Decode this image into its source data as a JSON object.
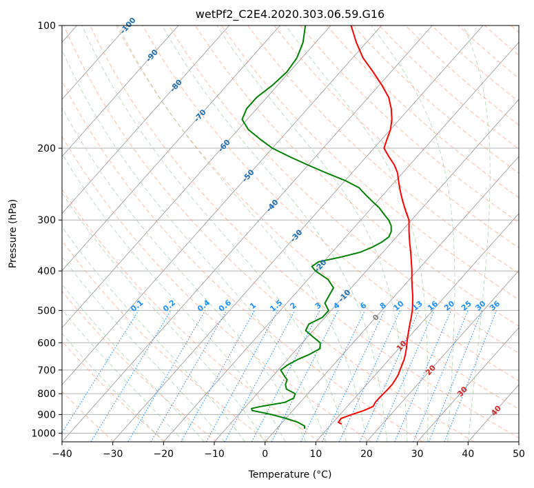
{
  "chart_data": {
    "type": "line",
    "subtype": "skew-t log-p diagram",
    "title": "wetPf2_C2E4.2020.303.06.59.G16",
    "xlabel": "Temperature (°C)",
    "ylabel": "Pressure (hPa)",
    "xlim": [
      -40,
      50
    ],
    "ylim": [
      1050,
      100
    ],
    "y_scale": "log",
    "grid": true,
    "x_ticks": [
      -40,
      -30,
      -20,
      -10,
      0,
      10,
      20,
      30,
      40,
      50
    ],
    "y_ticks": [
      100,
      200,
      300,
      400,
      500,
      600,
      700,
      800,
      900,
      1000
    ],
    "isotherm_labels": [
      "-100",
      "-90",
      "-80",
      "-70",
      "-60",
      "-50",
      "-40",
      "-30",
      "-20",
      "-10",
      "0",
      "10",
      "20",
      "30",
      "40"
    ],
    "mixing_ratio_labels": [
      "0.1",
      "0.2",
      "0.4",
      "0.6",
      "1",
      "1.5",
      "2",
      "3",
      "4",
      "6",
      "8",
      "10",
      "13",
      "16",
      "20",
      "25",
      "30",
      "36"
    ],
    "colors": {
      "temperature": "#ff0000",
      "dewpoint": "#008000",
      "isotherm_label_cold": "#1f6fb4",
      "isotherm_label_zero": "#808080",
      "isotherm_label_warm": "#d62728",
      "mixing_ratio": "#1e90ff",
      "dry_adiabat": "#ffa07a",
      "moist_adiabat": "#90c890",
      "skewed_isotherm": "#a0a0a0"
    },
    "series": [
      {
        "key": "temperature",
        "pressure": [
          950,
          940,
          920,
          900,
          880,
          860,
          840,
          820,
          800,
          780,
          760,
          740,
          720,
          700,
          680,
          660,
          640,
          620,
          600,
          580,
          560,
          540,
          520,
          500,
          480,
          460,
          440,
          420,
          400,
          380,
          360,
          340,
          320,
          300,
          290,
          280,
          270,
          260,
          250,
          240,
          230,
          220,
          210,
          200,
          190,
          180,
          170,
          160,
          150,
          140,
          130,
          120,
          110,
          100
        ],
        "values": [
          12.0,
          11.0,
          10.9,
          12.3,
          14.0,
          15.1,
          14.8,
          14.8,
          14.9,
          15.0,
          15.0,
          14.8,
          14.5,
          14.0,
          13.5,
          13.0,
          12.3,
          11.5,
          10.6,
          9.7,
          8.8,
          7.9,
          7.0,
          6.0,
          4.8,
          3.5,
          2.0,
          0.5,
          -1.0,
          -2.7,
          -4.5,
          -6.5,
          -8.5,
          -10.5,
          -12.0,
          -13.5,
          -15.0,
          -16.5,
          -18.0,
          -19.5,
          -21.0,
          -23.0,
          -25.5,
          -28.0,
          -29.0,
          -30.0,
          -31.5,
          -33.5,
          -36.0,
          -39.5,
          -43.5,
          -48.0,
          -52.0,
          -56.0
        ]
      },
      {
        "key": "dewpoint",
        "pressure": [
          975,
          960,
          940,
          920,
          900,
          880,
          870,
          860,
          840,
          820,
          800,
          780,
          760,
          740,
          720,
          700,
          680,
          660,
          640,
          620,
          600,
          580,
          560,
          540,
          520,
          500,
          480,
          460,
          440,
          420,
          400,
          390,
          380,
          370,
          360,
          350,
          340,
          330,
          320,
          310,
          300,
          290,
          280,
          270,
          260,
          250,
          240,
          230,
          220,
          210,
          200,
          190,
          180,
          170,
          160,
          150,
          140,
          130,
          120,
          110,
          100
        ],
        "values": [
          5.5,
          5.0,
          3.0,
          0.0,
          -3.5,
          -8.0,
          -8.5,
          -7.0,
          -3.0,
          -2.0,
          -2.5,
          -5.0,
          -6.0,
          -6.5,
          -8.0,
          -9.5,
          -9.0,
          -8.0,
          -6.5,
          -5.5,
          -6.5,
          -9.0,
          -11.5,
          -12.0,
          -10.5,
          -10.5,
          -12.5,
          -13.0,
          -13.5,
          -16.0,
          -20.0,
          -21.5,
          -21.0,
          -17.5,
          -14.5,
          -13.0,
          -12.0,
          -11.5,
          -12.0,
          -13.0,
          -14.5,
          -16.5,
          -18.5,
          -21.0,
          -23.5,
          -26.0,
          -30.0,
          -35.0,
          -40.0,
          -45.0,
          -50.0,
          -54.0,
          -58.0,
          -61.0,
          -62.0,
          -62.0,
          -61.0,
          -60.5,
          -61.0,
          -62.5,
          -65.0
        ]
      }
    ]
  }
}
